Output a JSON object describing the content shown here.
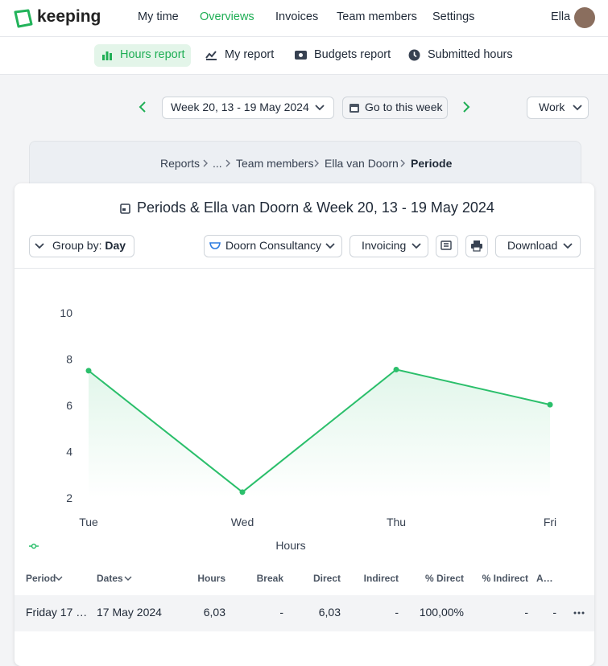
{
  "header": {
    "logo": "keeping",
    "nav": [
      "My time",
      "Overviews",
      "Invoices",
      "Team members",
      "Settings"
    ],
    "user": "Ella"
  },
  "subnav": [
    "Hours report",
    "My report",
    "Budgets report",
    "Submitted hours"
  ],
  "toolbar": {
    "week": "Week 20, 13 - 19 May 2024",
    "today": "Go to this week",
    "mode": "Work"
  },
  "breadcrumb": [
    "Reports",
    "...",
    "Team members",
    "Ella van Doorn",
    "Periode"
  ],
  "report": {
    "title": "Periods & Ella van Doorn & Week 20, 13 - 19 May 2024",
    "group_by_label": "Group by:",
    "group_by_value": "Day",
    "client": "Doorn Consultancy",
    "invoicing": "Invoicing",
    "download": "Download"
  },
  "chart_data": {
    "type": "line",
    "categories": [
      "Tue",
      "Wed",
      "Thu",
      "Fri"
    ],
    "series": [
      {
        "name": "Hours",
        "color": "#2bbf6b",
        "values": [
          7.5,
          2.25,
          7.55,
          6.03
        ]
      }
    ],
    "ylim": [
      2,
      10
    ],
    "yticks": [
      2,
      4,
      6,
      8,
      10
    ],
    "grid": false
  },
  "table": {
    "columns": [
      "Period",
      "Dates",
      "Hours",
      "Break",
      "Direct",
      "Indirect",
      "% Direct",
      "% Indirect",
      "A…"
    ],
    "rows": [
      [
        "Friday 17 …",
        "17 May 2024",
        "6,03",
        "-",
        "6,03",
        "-",
        "100,00%",
        "-",
        "-"
      ]
    ]
  }
}
